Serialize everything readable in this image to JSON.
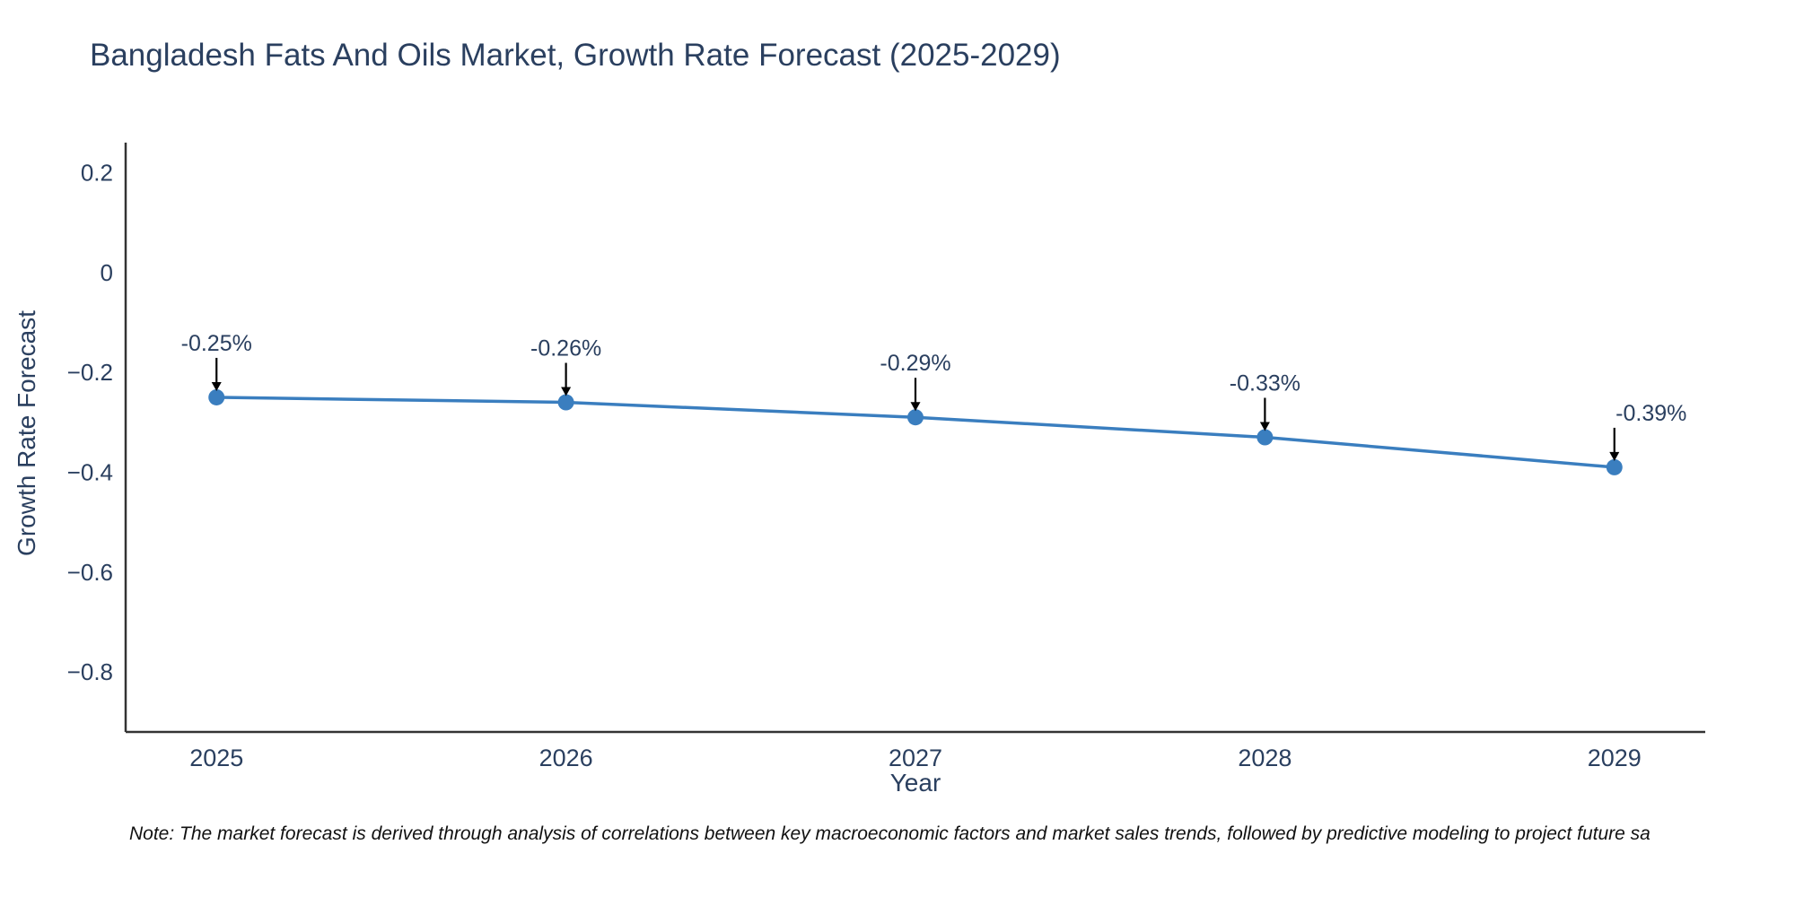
{
  "figure": {
    "note": "Note: The market forecast is derived through analysis of correlations between key macroeconomic factors and market sales trends, followed by predictive modeling to project future sa"
  },
  "chart_data": {
    "type": "line",
    "title": "Bangladesh Fats And Oils Market, Growth Rate Forecast (2025-2029)",
    "xlabel": "Year",
    "ylabel": "Growth Rate Forecast",
    "x": [
      2025,
      2026,
      2027,
      2028,
      2029
    ],
    "series": [
      {
        "name": "Growth Rate Forecast",
        "values": [
          -0.25,
          -0.26,
          -0.29,
          -0.33,
          -0.39
        ]
      }
    ],
    "point_labels": [
      "-0.25%",
      "-0.26%",
      "-0.29%",
      "-0.33%",
      "-0.39%"
    ],
    "x_tick_labels": [
      "2025",
      "2026",
      "2027",
      "2028",
      "2029"
    ],
    "y_ticks": [
      0.2,
      0,
      -0.2,
      -0.4,
      -0.6,
      -0.8
    ],
    "y_tick_labels": [
      "0.2",
      "0",
      "−0.2",
      "−0.4",
      "−0.6",
      "−0.8"
    ],
    "xlim": [
      2024.74,
      2029.26
    ],
    "ylim": [
      -0.92,
      0.26
    ],
    "grid": false,
    "legend": false,
    "colors": {
      "line": "#3a7ebf",
      "marker": "#3a7ebf",
      "axis": "#333333",
      "tick_label": "#2a3f5f",
      "title": "#2a3f5f",
      "annotation_text": "#2a3f5f",
      "annotation_arrow": "#000000"
    }
  }
}
